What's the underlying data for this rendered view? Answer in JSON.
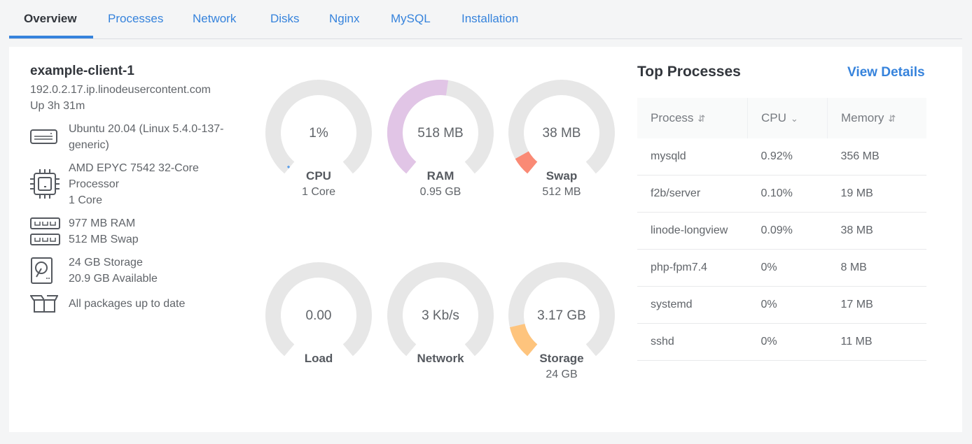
{
  "tabs": [
    {
      "label": "Overview",
      "active": true
    },
    {
      "label": "Processes"
    },
    {
      "label": "Network"
    },
    {
      "label": "Disks"
    },
    {
      "label": "Nginx"
    },
    {
      "label": "MySQL"
    },
    {
      "label": "Installation"
    }
  ],
  "host": {
    "name": "example-client-1",
    "hostname": "192.0.2.17.ip.linodeusercontent.com",
    "uptime": "Up 3h 31m"
  },
  "specs": {
    "os": {
      "icon": "server-icon",
      "line1": "Ubuntu 20.04 (Linux 5.4.0-137-",
      "line2": "generic)"
    },
    "cpu": {
      "icon": "cpu-chip-icon",
      "line1": "AMD EPYC 7542 32-Core",
      "line2": "Processor",
      "line3": "1 Core"
    },
    "ram": {
      "icon": "memory-icon",
      "line1": "977 MB RAM",
      "line2": "512 MB Swap"
    },
    "storage": {
      "icon": "hard-disk-icon",
      "line1": "24 GB Storage",
      "line2": "20.9 GB Available"
    },
    "packages": {
      "icon": "package-icon",
      "line1": "All packages up to date"
    }
  },
  "gauges": [
    {
      "value": "1%",
      "title": "CPU",
      "sub": "1 Core",
      "fill": 0.01,
      "color": "#5b9ee8"
    },
    {
      "value": "518 MB",
      "title": "RAM",
      "sub": "0.95 GB",
      "fill": 0.53,
      "color": "#e1c5e6"
    },
    {
      "value": "38 MB",
      "title": "Swap",
      "sub": "512 MB",
      "fill": 0.074,
      "color": "#fa8a75"
    },
    {
      "value": "0.00",
      "title": "Load",
      "sub": "",
      "fill": 0,
      "color": "#e7e7e7"
    },
    {
      "value": "3 Kb/s",
      "title": "Network",
      "sub": "",
      "fill": 0,
      "color": "#e7e7e7"
    },
    {
      "value": "3.17 GB",
      "title": "Storage",
      "sub": "24 GB",
      "fill": 0.132,
      "color": "#fec47d"
    }
  ],
  "gauge_track_color": "#e7e7e7",
  "top_processes": {
    "title": "Top Processes",
    "view_details": "View Details",
    "columns": [
      "Process",
      "CPU",
      "Memory"
    ],
    "rows": [
      [
        "mysqld",
        "0.92%",
        "356 MB"
      ],
      [
        "f2b/server",
        "0.10%",
        "19 MB"
      ],
      [
        "linode-longview",
        "0.09%",
        "38 MB"
      ],
      [
        "php-fpm7.4",
        "0%",
        "8 MB"
      ],
      [
        "systemd",
        "0%",
        "17 MB"
      ],
      [
        "sshd",
        "0%",
        "11 MB"
      ]
    ]
  }
}
